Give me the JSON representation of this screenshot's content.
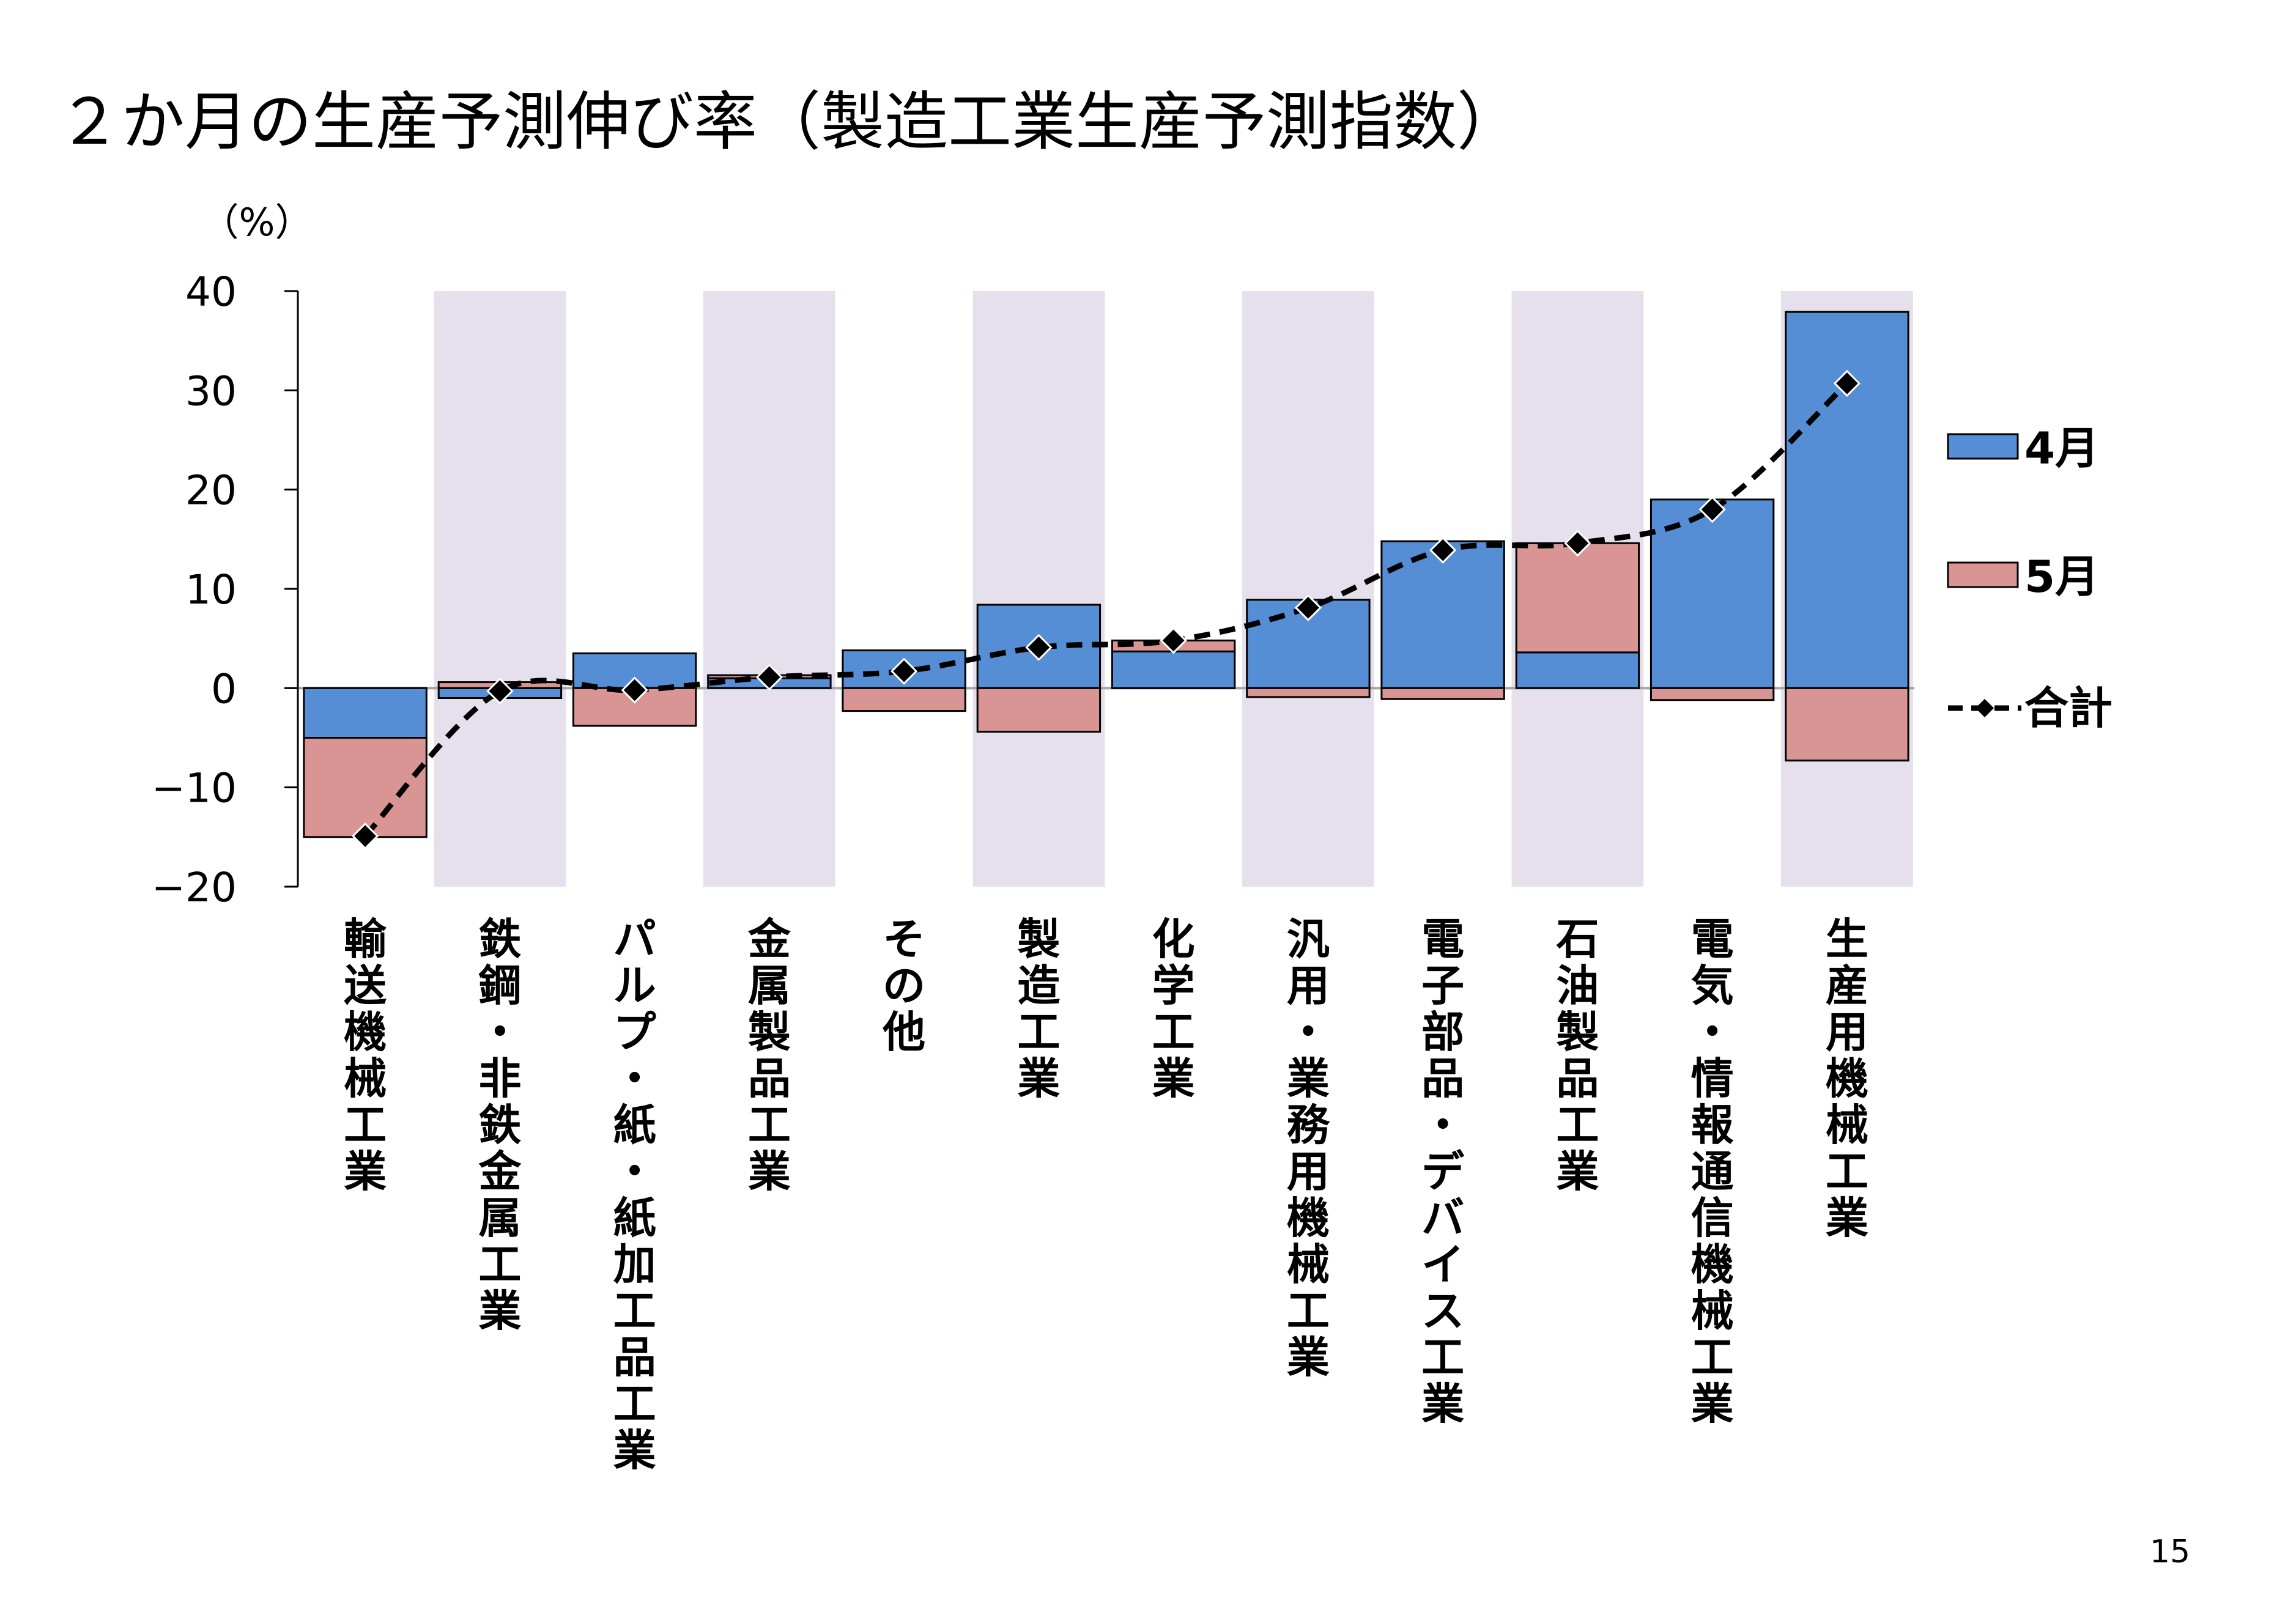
{
  "page_number": "15",
  "chart_data": {
    "type": "bar",
    "title": "２か月の生産予測伸び率（製造工業生産予測指数）",
    "ylabel": "（%）",
    "ylim": [
      -20,
      40
    ],
    "yticks": [
      40,
      30,
      20,
      10,
      0,
      -10,
      -20
    ],
    "ytick_labels": [
      "40",
      "30",
      "20",
      "10",
      "0",
      "−10",
      "−20"
    ],
    "categories": [
      "輸送機械工業",
      "鉄鋼・非鉄金属工業",
      "パルプ・紙・紙加工品工業",
      "金属製品工業",
      "その他",
      "製造工業",
      "化学工業",
      "汎用・業務用機械工業",
      "電子部品・デバイス工業",
      "石油製品工業",
      "電気・情報通信機械工業",
      "生産用機械工業"
    ],
    "series": [
      {
        "name": "4月",
        "kind": "bar",
        "color": "#558ED5",
        "values": [
          -5.0,
          -1.0,
          3.5,
          1.0,
          3.8,
          8.4,
          3.7,
          8.9,
          14.8,
          3.6,
          19.0,
          37.9
        ]
      },
      {
        "name": "5月",
        "kind": "bar",
        "color": "#D99594",
        "values": [
          -10.0,
          0.6,
          -3.8,
          0.3,
          -2.3,
          -4.4,
          1.1,
          -0.9,
          -1.1,
          11.0,
          -1.2,
          -7.3
        ]
      },
      {
        "name": "合計",
        "kind": "line",
        "style": "dashed",
        "marker": "diamond",
        "color": "#000000",
        "values": [
          -14.9,
          -0.3,
          -0.2,
          1.1,
          1.7,
          4.1,
          4.8,
          8.1,
          13.9,
          14.6,
          18.0,
          30.7
        ]
      }
    ],
    "bar_mode": "stacked",
    "shaded_columns": [
      1,
      3,
      5,
      7,
      9,
      11
    ],
    "shade_color": "#E5E0EC",
    "legend_position": "right",
    "grid": false
  }
}
